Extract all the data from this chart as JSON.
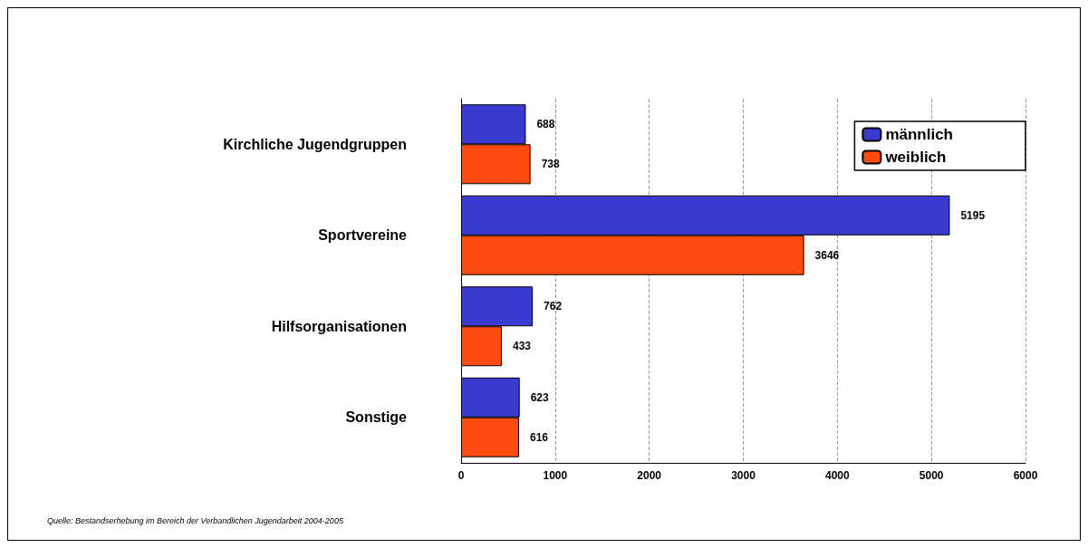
{
  "chart_data": {
    "type": "bar",
    "orientation": "horizontal",
    "categories": [
      "Kirchliche Jugendgruppen",
      "Sportvereine",
      "Hilfsorganisationen",
      "Sonstige"
    ],
    "series": [
      {
        "name": "männlich",
        "color": "#3a3ad0",
        "values": [
          688,
          5195,
          762,
          623
        ]
      },
      {
        "name": "weiblich",
        "color": "#ff4a10",
        "values": [
          738,
          3646,
          433,
          616
        ]
      }
    ],
    "xlim": [
      0,
      6000
    ],
    "xticks": [
      0,
      1000,
      2000,
      3000,
      4000,
      5000,
      6000
    ],
    "grid": "x",
    "legend": "top right",
    "data_labels": true,
    "annotations": [
      "Quelle: Bestandserhebung im Bereich der Verbandlichen Jugendarbeit 2004-2005"
    ]
  }
}
